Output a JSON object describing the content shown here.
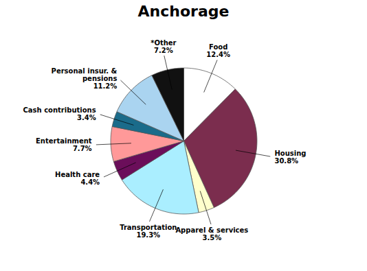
{
  "chart_data": {
    "type": "pie",
    "title": "Anchorage",
    "categories": [
      "Food",
      "Housing",
      "Apparel & services",
      "Transportation",
      "Health care",
      "Entertainment",
      "Cash contributions",
      "Personal insur. &\npensions",
      "*Other"
    ],
    "values": [
      12.4,
      30.8,
      3.5,
      19.3,
      4.4,
      7.7,
      3.4,
      11.2,
      7.2
    ],
    "value_labels": [
      "12.4%",
      "30.8%",
      "3.5%",
      "19.3%",
      "4.4%",
      "7.7%",
      "3.4%",
      "11.2%",
      "7.2%"
    ],
    "colors": [
      "#ffffff",
      "#7b2d4e",
      "#ffffcc",
      "#aaeeff",
      "#6b0e5a",
      "#ff9999",
      "#1a6b8a",
      "#aad4f0",
      "#111111"
    ],
    "data_labels": true
  }
}
